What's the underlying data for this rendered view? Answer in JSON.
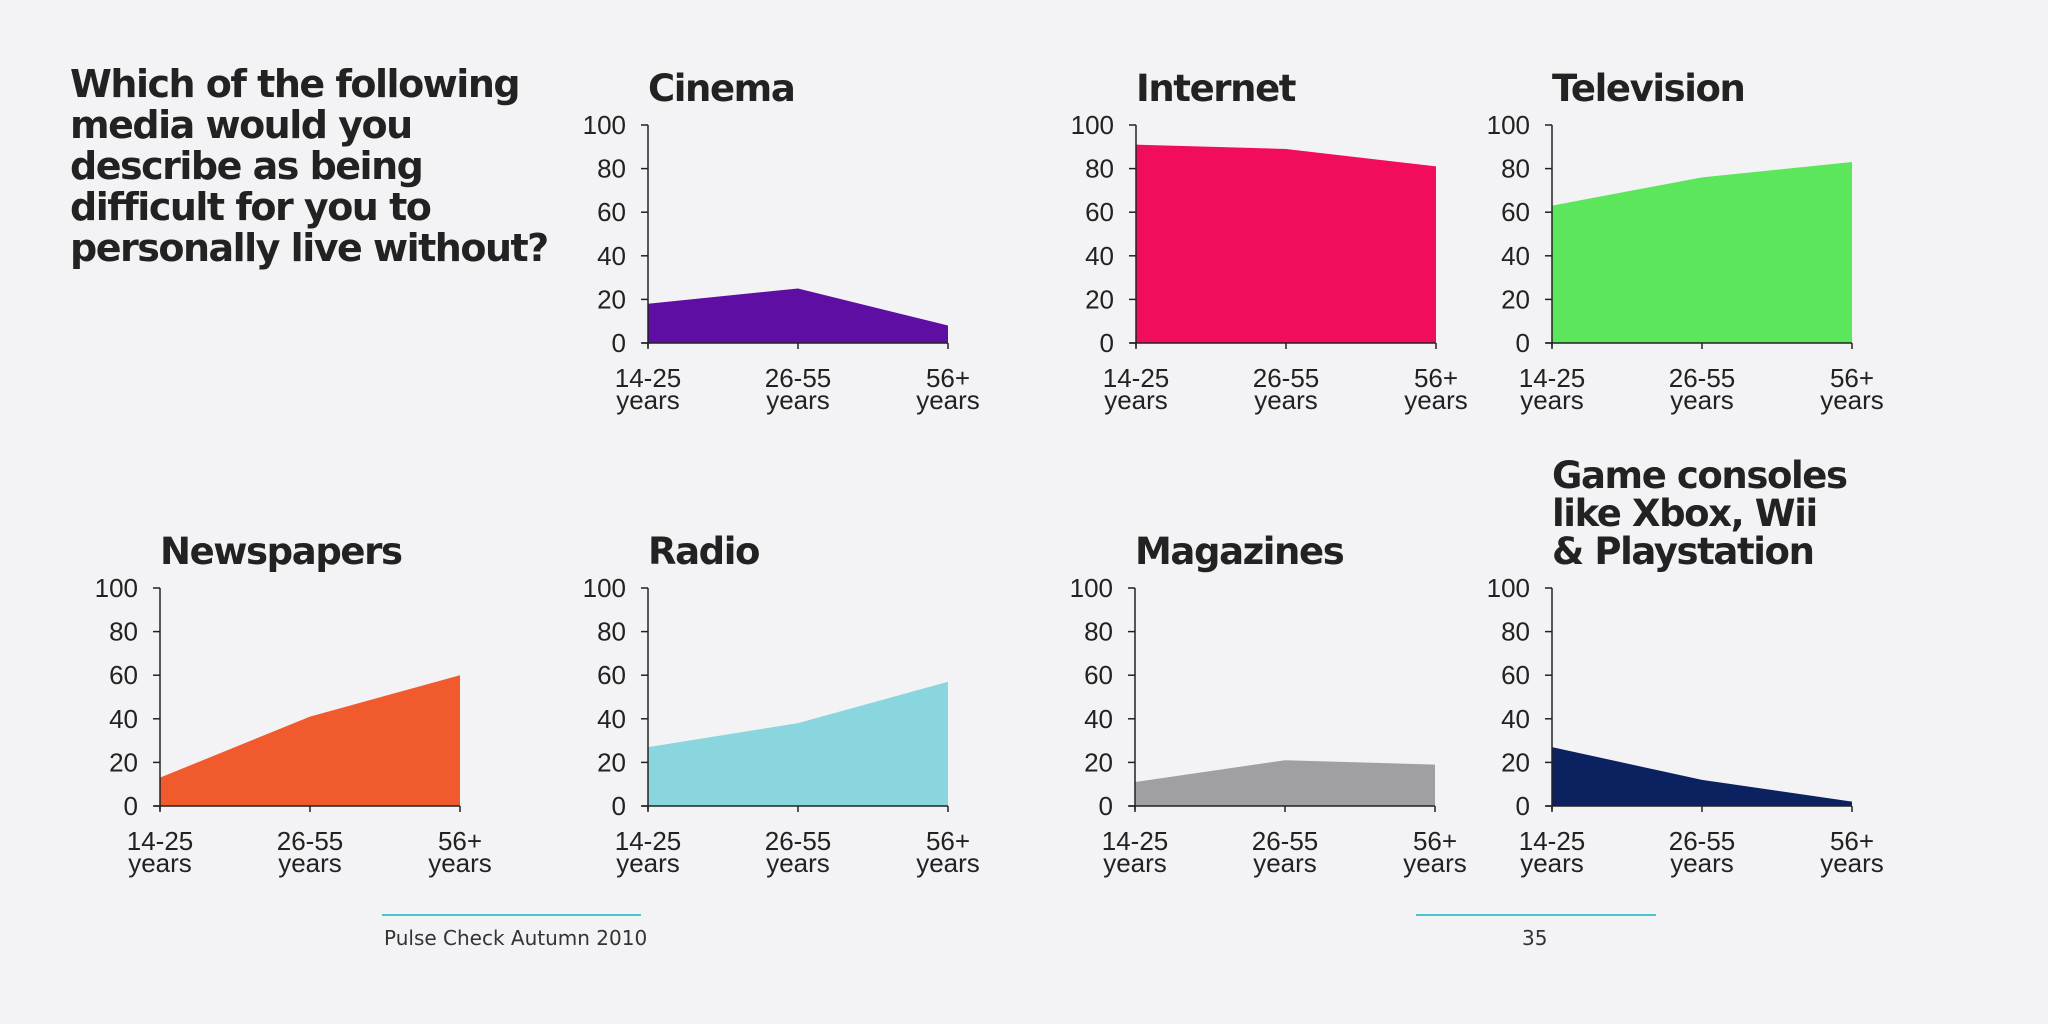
{
  "question": "Which of the following media would you describe as being difficult for you to personally live without?",
  "footer": {
    "source": "Pulse Check Autumn 2010",
    "page_number": "35"
  },
  "chart_data": [
    {
      "type": "area",
      "title": "Cinema",
      "color": "#5e0ea3",
      "categories": [
        "14-25 years",
        "26-55 years",
        "56+ years"
      ],
      "values": [
        18,
        25,
        8
      ],
      "ylim": [
        0,
        100
      ],
      "yticks": [
        "0",
        "20",
        "40",
        "60",
        "80",
        "100"
      ]
    },
    {
      "type": "area",
      "title": "Internet",
      "color": "#f20c5c",
      "categories": [
        "14-25 years",
        "26-55 years",
        "56+ years"
      ],
      "values": [
        91,
        89,
        81
      ],
      "ylim": [
        0,
        100
      ],
      "yticks": [
        "0",
        "20",
        "40",
        "60",
        "80",
        "100"
      ]
    },
    {
      "type": "area",
      "title": "Television",
      "color": "#5ce65c",
      "categories": [
        "14-25 years",
        "26-55 years",
        "56+ years"
      ],
      "values": [
        63,
        76,
        83
      ],
      "ylim": [
        0,
        100
      ],
      "yticks": [
        "0",
        "20",
        "40",
        "60",
        "80",
        "100"
      ]
    },
    {
      "type": "area",
      "title": "Newspapers",
      "color": "#f05a2c",
      "categories": [
        "14-25 years",
        "26-55 years",
        "56+ years"
      ],
      "values": [
        13,
        41,
        60
      ],
      "ylim": [
        0,
        100
      ],
      "yticks": [
        "0",
        "20",
        "40",
        "60",
        "80",
        "100"
      ]
    },
    {
      "type": "area",
      "title": "Radio",
      "color": "#8ad6de",
      "categories": [
        "14-25 years",
        "26-55 years",
        "56+ years"
      ],
      "values": [
        27,
        38,
        57
      ],
      "ylim": [
        0,
        100
      ],
      "yticks": [
        "0",
        "20",
        "40",
        "60",
        "80",
        "100"
      ]
    },
    {
      "type": "area",
      "title": "Magazines",
      "color": "#a0a0a2",
      "categories": [
        "14-25 years",
        "26-55 years",
        "56+ years"
      ],
      "values": [
        11,
        21,
        19
      ],
      "ylim": [
        0,
        100
      ],
      "yticks": [
        "0",
        "20",
        "40",
        "60",
        "80",
        "100"
      ]
    },
    {
      "type": "area",
      "title": "Game consoles like Xbox, Wii & Playstation",
      "title_lines": [
        "Game consoles",
        "like Xbox, Wii",
        "& Playstation"
      ],
      "color": "#0b2160",
      "categories": [
        "14-25 years",
        "26-55 years",
        "56+ years"
      ],
      "values": [
        27,
        12,
        2
      ],
      "ylim": [
        0,
        100
      ],
      "yticks": [
        "0",
        "20",
        "40",
        "60",
        "80",
        "100"
      ]
    }
  ]
}
